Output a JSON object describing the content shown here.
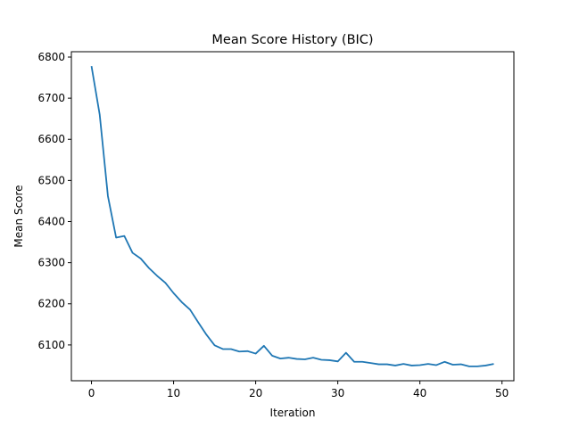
{
  "chart_data": {
    "type": "line",
    "title": "Mean Score History (BIC)",
    "xlabel": "Iteration",
    "ylabel": "Mean Score",
    "xlim": [
      -2.45,
      51.45
    ],
    "ylim": [
      6013,
      6813
    ],
    "xticks": [
      0,
      10,
      20,
      30,
      40,
      50
    ],
    "yticks": [
      6100,
      6200,
      6300,
      6400,
      6500,
      6600,
      6700,
      6800
    ],
    "grid": false,
    "legend": "none",
    "series": [
      {
        "color": "#1f77b4",
        "x": [
          0,
          1,
          2,
          3,
          4,
          5,
          6,
          7,
          8,
          9,
          10,
          11,
          12,
          13,
          14,
          15,
          16,
          17,
          18,
          19,
          20,
          21,
          22,
          23,
          24,
          25,
          26,
          27,
          28,
          29,
          30,
          31,
          32,
          33,
          34,
          35,
          36,
          37,
          38,
          39,
          40,
          41,
          42,
          43,
          44,
          45,
          46,
          47,
          48,
          49
        ],
        "y": [
          6778,
          6660,
          6462,
          6361,
          6365,
          6324,
          6310,
          6287,
          6268,
          6251,
          6226,
          6204,
          6186,
          6155,
          6125,
          6099,
          6090,
          6090,
          6084,
          6085,
          6079,
          6098,
          6074,
          6067,
          6069,
          6066,
          6065,
          6069,
          6064,
          6063,
          6060,
          6081,
          6059,
          6059,
          6056,
          6053,
          6053,
          6050,
          6054,
          6050,
          6051,
          6054,
          6051,
          6059,
          6052,
          6053,
          6048,
          6048,
          6050,
          6054
        ]
      }
    ]
  }
}
